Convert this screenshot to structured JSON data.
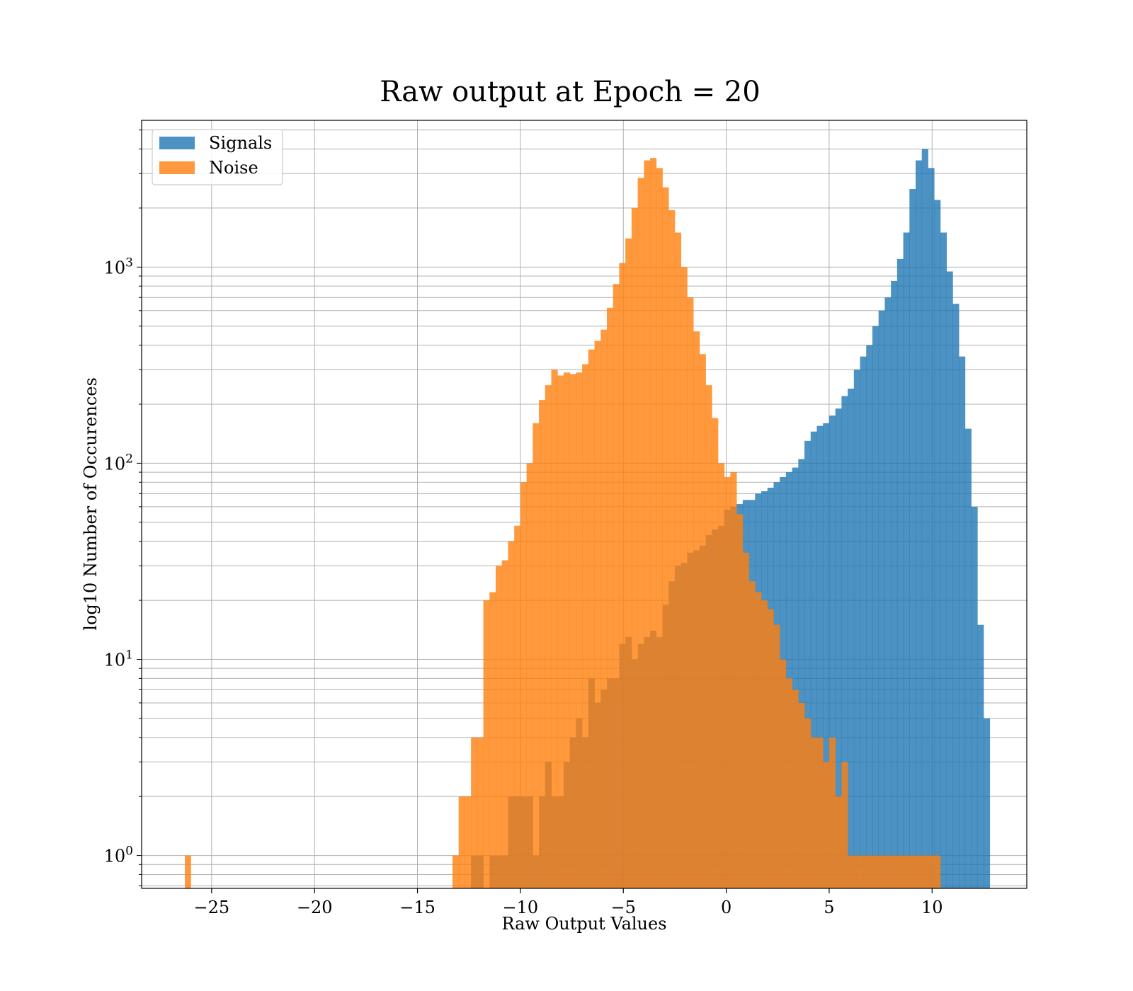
{
  "chart_data": {
    "type": "bar",
    "title": "Raw output at Epoch = 20",
    "xlabel": "Raw Output Values",
    "ylabel": "log10 Number of Occurences",
    "xlim": [
      -28.4,
      14.6
    ],
    "ylim": [
      0.68,
      5600
    ],
    "yscale": "log",
    "grid": true,
    "legend": "top-left",
    "x_ticks": [
      "−25",
      "−20",
      "−15",
      "−10",
      "−5",
      "0",
      "5",
      "10"
    ],
    "x_tick_values": [
      -25,
      -20,
      -15,
      -10,
      -5,
      0,
      5,
      10
    ],
    "y_ticks": [
      {
        "base": "10",
        "exp": "0",
        "value": 1
      },
      {
        "base": "10",
        "exp": "1",
        "value": 10
      },
      {
        "base": "10",
        "exp": "2",
        "value": 100
      },
      {
        "base": "10",
        "exp": "3",
        "value": 1000
      }
    ],
    "series": [
      {
        "name": "Signals",
        "color": "#1f77b4",
        "bin_start": -13.3,
        "bin_width": 0.3,
        "counts": [
          0,
          0,
          0,
          1,
          1,
          0,
          1,
          1,
          1,
          2,
          2,
          2,
          2,
          1,
          2,
          3,
          2,
          2,
          3,
          4,
          5,
          4,
          8,
          6,
          7,
          8,
          8,
          12,
          13,
          10,
          12,
          13,
          14,
          13,
          19,
          25,
          30,
          31,
          35,
          36,
          38,
          43,
          46,
          48,
          58,
          60,
          62,
          65,
          65,
          70,
          72,
          75,
          80,
          85,
          90,
          95,
          105,
          130,
          145,
          155,
          160,
          175,
          190,
          220,
          240,
          300,
          350,
          400,
          500,
          600,
          700,
          850,
          1100,
          1500,
          2500,
          3500,
          4000,
          3200,
          2200,
          1500,
          950,
          650,
          350,
          150,
          60,
          15,
          5
        ]
      },
      {
        "name": "Noise",
        "color": "#ff7f0e",
        "outlier_bin_start": -26.3,
        "outlier_count": 1,
        "bin_start": -13.3,
        "bin_width": 0.3,
        "counts": [
          1,
          2,
          2,
          4,
          4,
          20,
          22,
          30,
          32,
          40,
          48,
          80,
          100,
          160,
          210,
          250,
          300,
          280,
          290,
          285,
          290,
          320,
          380,
          420,
          480,
          620,
          820,
          1050,
          1400,
          2000,
          2850,
          3500,
          3600,
          3200,
          2550,
          1950,
          1500,
          1000,
          700,
          470,
          360,
          250,
          170,
          100,
          85,
          90,
          55,
          35,
          25,
          22,
          20,
          18,
          15,
          10,
          8,
          7,
          6,
          5,
          4,
          4,
          3,
          4,
          2,
          3,
          1,
          1,
          1,
          1,
          1,
          1,
          1,
          1,
          1,
          1,
          1,
          1,
          1,
          1,
          1
        ]
      }
    ]
  }
}
